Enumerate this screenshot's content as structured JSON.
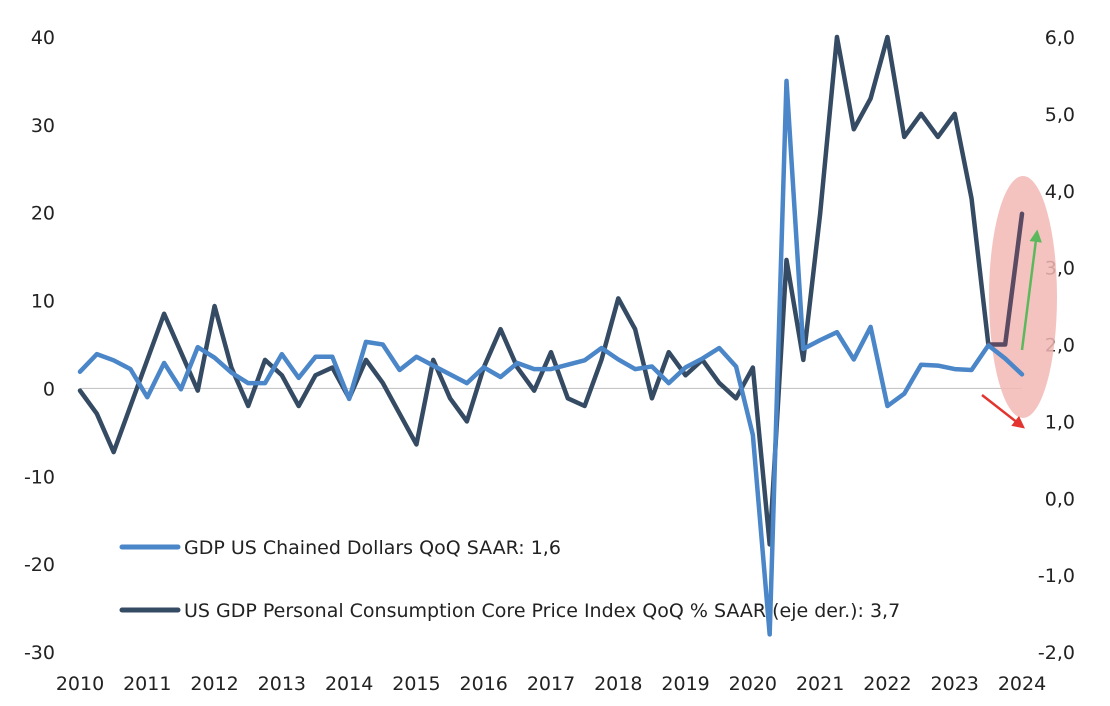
{
  "chart_data": {
    "type": "line",
    "x_labels": [
      "2010",
      "2011",
      "2012",
      "2013",
      "2014",
      "2015",
      "2016",
      "2017",
      "2018",
      "2019",
      "2020",
      "2021",
      "2022",
      "2023",
      "2024"
    ],
    "y_left": {
      "ticks": [
        "40",
        "30",
        "20",
        "10",
        "0",
        "-10",
        "-20",
        "-30"
      ],
      "min": -30,
      "max": 40
    },
    "y_right": {
      "ticks": [
        "6,0",
        "5,0",
        "4,0",
        "3,0",
        "2,0",
        "1,0",
        "0,0",
        "-1,0",
        "-2,0"
      ],
      "min": -2.0,
      "max": 6.0
    },
    "colors": {
      "gdp": "#4a86c8",
      "pce": "#354b63",
      "highlight_line": "#5a4a62",
      "ellipse": "#f2b8b5",
      "up_arrow": "#5cb85c",
      "down_arrow": "#e3342f"
    },
    "series": [
      {
        "name": "GDP US Chained Dollars QoQ SAAR: 1,6",
        "axis": "left",
        "x": [
          2010.0,
          2010.25,
          2010.5,
          2010.75,
          2011.0,
          2011.25,
          2011.5,
          2011.75,
          2012.0,
          2012.25,
          2012.5,
          2012.75,
          2013.0,
          2013.25,
          2013.5,
          2013.75,
          2014.0,
          2014.25,
          2014.5,
          2014.75,
          2015.0,
          2015.25,
          2015.5,
          2015.75,
          2016.0,
          2016.25,
          2016.5,
          2016.75,
          2017.0,
          2017.25,
          2017.5,
          2017.75,
          2018.0,
          2018.25,
          2018.5,
          2018.75,
          2019.0,
          2019.25,
          2019.5,
          2019.75,
          2020.0,
          2020.25,
          2020.5,
          2020.75,
          2021.0,
          2021.25,
          2021.5,
          2021.75,
          2022.0,
          2022.25,
          2022.5,
          2022.75,
          2023.0,
          2023.25,
          2023.5,
          2023.75,
          2024.0
        ],
        "values": [
          1.9,
          3.9,
          3.2,
          2.2,
          -1.0,
          2.9,
          -0.1,
          4.7,
          3.5,
          1.8,
          0.6,
          0.6,
          3.9,
          1.2,
          3.6,
          3.6,
          -1.2,
          5.3,
          5.0,
          2.1,
          3.6,
          2.6,
          1.6,
          0.6,
          2.4,
          1.3,
          2.9,
          2.2,
          2.2,
          2.7,
          3.2,
          4.6,
          3.3,
          2.2,
          2.5,
          0.6,
          2.4,
          3.4,
          4.6,
          2.5,
          -5.3,
          -28.0,
          35.0,
          4.5,
          5.5,
          6.4,
          3.3,
          7.0,
          -2.0,
          -0.6,
          2.7,
          2.6,
          2.2,
          2.1,
          4.9,
          3.4,
          1.6
        ]
      },
      {
        "name": "US GDP Personal Consumption Core Price Index QoQ % SAAR (eje der.): 3,7",
        "axis": "right",
        "x": [
          2010.0,
          2010.25,
          2010.5,
          2010.75,
          2011.0,
          2011.25,
          2011.5,
          2011.75,
          2012.0,
          2012.25,
          2012.5,
          2012.75,
          2013.0,
          2013.25,
          2013.5,
          2013.75,
          2014.0,
          2014.25,
          2014.5,
          2014.75,
          2015.0,
          2015.25,
          2015.5,
          2015.75,
          2016.0,
          2016.25,
          2016.5,
          2016.75,
          2017.0,
          2017.25,
          2017.5,
          2017.75,
          2018.0,
          2018.25,
          2018.5,
          2018.75,
          2019.0,
          2019.25,
          2019.5,
          2019.75,
          2020.0,
          2020.25,
          2020.5,
          2020.75,
          2021.0,
          2021.25,
          2021.5,
          2021.75,
          2022.0,
          2022.25,
          2022.5,
          2022.75,
          2023.0,
          2023.25,
          2023.5,
          2023.75,
          2024.0
        ],
        "values": [
          1.4,
          1.1,
          0.6,
          1.2,
          1.8,
          2.4,
          1.9,
          1.4,
          2.5,
          1.7,
          1.2,
          1.8,
          1.6,
          1.2,
          1.6,
          1.7,
          1.3,
          1.8,
          1.5,
          1.1,
          0.7,
          1.8,
          1.3,
          1.0,
          1.7,
          2.2,
          1.7,
          1.4,
          1.9,
          1.3,
          1.2,
          1.8,
          2.6,
          2.2,
          1.3,
          1.9,
          1.6,
          1.8,
          1.5,
          1.3,
          1.7,
          -0.6,
          3.1,
          1.8,
          3.7,
          6.0,
          4.8,
          5.2,
          6.0,
          4.7,
          5.0,
          4.7,
          5.0,
          3.9,
          2.0,
          2.0,
          3.7
        ]
      }
    ]
  },
  "legend": {
    "gdp_label": "GDP US Chained Dollars QoQ SAAR: 1,6",
    "pce_label": "US GDP Personal Consumption Core Price Index QoQ % SAAR (eje der.): 3,7"
  }
}
